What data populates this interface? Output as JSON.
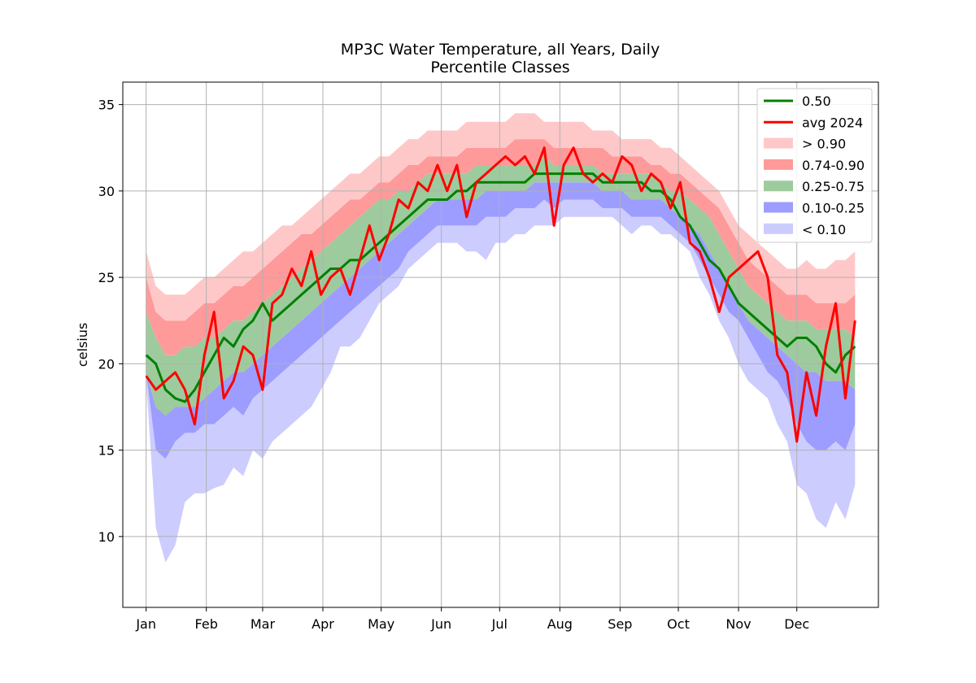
{
  "chart_data": {
    "type": "area",
    "title": "MP3C Water Temperature, all Years, Daily",
    "subtitle": "Percentile Classes",
    "ylabel": "celsius",
    "xlabel": "",
    "x_units": "day of year",
    "xlim": [
      -12,
      377
    ],
    "ylim": [
      5.9,
      36.3
    ],
    "yticks": [
      10,
      15,
      20,
      25,
      30,
      35
    ],
    "month_ticks": [
      {
        "label": "Jan",
        "day": 0
      },
      {
        "label": "Feb",
        "day": 31
      },
      {
        "label": "Mar",
        "day": 60
      },
      {
        "label": "Apr",
        "day": 91
      },
      {
        "label": "May",
        "day": 121
      },
      {
        "label": "Jun",
        "day": 152
      },
      {
        "label": "Jul",
        "day": 182
      },
      {
        "label": "Aug",
        "day": 213
      },
      {
        "label": "Sep",
        "day": 244
      },
      {
        "label": "Oct",
        "day": 274
      },
      {
        "label": "Nov",
        "day": 305
      },
      {
        "label": "Dec",
        "day": 335
      }
    ],
    "grid": true,
    "legend_position": "top-right",
    "colors": {
      "median": "#008000",
      "avg2024": "#ff0000",
      "gt90": "#ffc8c8",
      "p74_90": "#ff9a9a",
      "p25_75": "#9dcb9d",
      "p10_25": "#9d9dff",
      "lt10": "#ccccff"
    },
    "legend": [
      {
        "label": "0.50",
        "kind": "line",
        "color": "#008000"
      },
      {
        "label": "avg 2024",
        "kind": "line",
        "color": "#ff0000"
      },
      {
        "label": "> 0.90",
        "kind": "patch",
        "color": "#ffc8c8"
      },
      {
        "label": "0.74-0.90",
        "kind": "patch",
        "color": "#ff9a9a"
      },
      {
        "label": "0.25-0.75",
        "kind": "patch",
        "color": "#9dcb9d"
      },
      {
        "label": "0.10-0.25",
        "kind": "patch",
        "color": "#9d9dff"
      },
      {
        "label": "< 0.10",
        "kind": "patch",
        "color": "#ccccff"
      }
    ],
    "x": [
      0,
      5,
      10,
      15,
      20,
      25,
      30,
      35,
      40,
      45,
      50,
      55,
      60,
      65,
      70,
      75,
      80,
      85,
      90,
      95,
      100,
      105,
      110,
      115,
      120,
      125,
      130,
      135,
      140,
      145,
      150,
      155,
      160,
      165,
      170,
      175,
      180,
      185,
      190,
      195,
      200,
      205,
      210,
      215,
      220,
      225,
      230,
      235,
      240,
      245,
      250,
      255,
      260,
      265,
      270,
      275,
      280,
      285,
      290,
      295,
      300,
      305,
      310,
      315,
      320,
      325,
      330,
      335,
      340,
      345,
      350,
      355,
      360,
      365
    ],
    "series": [
      {
        "name": "< 0.10 (lower bound)",
        "values": [
          19.0,
          10.5,
          8.5,
          9.5,
          12.0,
          12.5,
          12.5,
          12.8,
          13.0,
          14.0,
          13.5,
          15.0,
          14.5,
          15.5,
          16.0,
          16.5,
          17.0,
          17.5,
          18.5,
          19.5,
          21.0,
          21.0,
          21.5,
          22.5,
          23.5,
          24.0,
          24.5,
          25.5,
          26.0,
          26.5,
          27.0,
          27.0,
          27.0,
          26.5,
          26.5,
          26.0,
          27.0,
          27.0,
          27.5,
          27.5,
          28.0,
          28.0,
          28.0,
          28.5,
          28.5,
          28.5,
          28.5,
          28.5,
          28.5,
          28.0,
          27.5,
          28.0,
          28.0,
          27.5,
          27.5,
          27.0,
          26.5,
          25.0,
          24.0,
          22.5,
          21.5,
          20.0,
          19.0,
          18.5,
          18.0,
          16.5,
          15.5,
          13.0,
          12.5,
          11.0,
          10.5,
          12.0,
          11.0,
          13.0
        ]
      },
      {
        "name": "0.10-0.25 (lower bound)",
        "values": [
          19.5,
          15.0,
          14.5,
          15.5,
          16.0,
          16.0,
          16.5,
          16.5,
          17.0,
          17.5,
          17.0,
          18.0,
          18.5,
          19.0,
          19.5,
          20.0,
          20.5,
          21.0,
          21.5,
          22.0,
          22.5,
          23.0,
          23.5,
          24.0,
          24.5,
          25.0,
          25.5,
          26.5,
          27.0,
          27.5,
          28.0,
          28.0,
          28.0,
          28.0,
          28.0,
          28.5,
          28.5,
          28.5,
          29.0,
          29.0,
          29.0,
          29.5,
          29.0,
          29.5,
          29.5,
          29.5,
          29.5,
          29.0,
          29.0,
          29.0,
          28.5,
          28.5,
          28.5,
          28.5,
          28.0,
          27.5,
          27.0,
          26.0,
          25.0,
          24.0,
          23.0,
          22.5,
          21.5,
          20.5,
          19.5,
          19.0,
          18.0,
          16.5,
          15.5,
          15.0,
          15.0,
          15.5,
          15.0,
          16.5
        ]
      },
      {
        "name": "0.25-0.75 (lower bound)",
        "values": [
          19.5,
          17.5,
          17.0,
          17.5,
          17.5,
          17.5,
          18.0,
          18.5,
          19.0,
          19.5,
          19.5,
          20.0,
          20.5,
          21.0,
          21.5,
          22.0,
          22.5,
          23.0,
          23.5,
          24.0,
          24.5,
          25.0,
          25.5,
          26.0,
          26.5,
          27.0,
          27.5,
          28.0,
          28.5,
          29.0,
          29.5,
          29.5,
          29.5,
          29.5,
          29.5,
          30.0,
          30.0,
          30.0,
          30.0,
          30.0,
          30.5,
          30.5,
          30.5,
          30.5,
          30.5,
          30.5,
          30.5,
          30.0,
          30.0,
          30.0,
          29.5,
          29.5,
          29.5,
          29.5,
          29.0,
          28.5,
          28.0,
          27.5,
          26.5,
          25.5,
          24.5,
          23.5,
          22.5,
          22.0,
          21.5,
          21.0,
          20.5,
          20.0,
          19.5,
          19.5,
          19.0,
          19.0,
          19.0,
          18.5
        ]
      },
      {
        "name": "0.74-0.90 (lower bound)",
        "values": [
          23.0,
          21.5,
          20.5,
          20.5,
          21.0,
          21.0,
          21.5,
          21.5,
          22.0,
          22.5,
          22.5,
          23.0,
          23.5,
          24.0,
          24.5,
          25.0,
          25.5,
          26.0,
          26.5,
          27.0,
          27.5,
          28.0,
          28.5,
          29.0,
          29.5,
          29.5,
          30.0,
          30.0,
          30.5,
          31.0,
          31.0,
          31.0,
          31.0,
          31.0,
          31.5,
          31.5,
          31.5,
          31.5,
          31.5,
          31.5,
          31.5,
          32.0,
          31.5,
          31.5,
          31.5,
          31.5,
          31.5,
          31.0,
          31.0,
          31.0,
          31.0,
          31.0,
          31.0,
          30.5,
          30.0,
          30.0,
          29.5,
          29.0,
          28.5,
          27.5,
          26.5,
          25.5,
          24.5,
          24.0,
          23.5,
          23.0,
          22.5,
          22.5,
          22.5,
          22.0,
          22.0,
          22.0,
          22.0,
          21.5
        ]
      },
      {
        "name": "> 0.90 (lower bound)",
        "values": [
          25.0,
          23.0,
          22.5,
          22.5,
          22.5,
          23.0,
          23.5,
          23.5,
          24.0,
          24.5,
          24.5,
          25.0,
          25.5,
          26.0,
          26.5,
          27.0,
          27.5,
          27.5,
          28.0,
          28.5,
          29.0,
          29.5,
          29.5,
          30.0,
          30.5,
          30.5,
          31.0,
          31.5,
          31.5,
          32.0,
          32.0,
          32.0,
          32.0,
          32.5,
          32.5,
          32.5,
          32.5,
          32.5,
          33.0,
          33.0,
          33.0,
          33.0,
          32.5,
          32.5,
          32.5,
          32.5,
          32.5,
          32.5,
          32.0,
          32.0,
          32.0,
          32.0,
          31.5,
          31.5,
          31.0,
          31.0,
          30.5,
          30.0,
          29.5,
          29.0,
          28.0,
          27.0,
          26.0,
          25.5,
          25.0,
          24.5,
          24.0,
          24.0,
          24.0,
          23.5,
          23.5,
          23.5,
          23.5,
          24.0
        ]
      },
      {
        "name": "> 0.90 (upper bound)",
        "values": [
          26.5,
          24.5,
          24.0,
          24.0,
          24.0,
          24.5,
          25.0,
          25.0,
          25.5,
          26.0,
          26.5,
          26.5,
          27.0,
          27.5,
          28.0,
          28.0,
          28.5,
          29.0,
          29.5,
          30.0,
          30.5,
          31.0,
          31.0,
          31.5,
          32.0,
          32.0,
          32.5,
          33.0,
          33.0,
          33.5,
          33.5,
          33.5,
          33.5,
          34.0,
          34.0,
          34.0,
          34.0,
          34.0,
          34.5,
          34.5,
          34.5,
          34.0,
          34.0,
          34.0,
          34.0,
          34.0,
          33.5,
          33.5,
          33.5,
          33.0,
          33.0,
          33.0,
          33.0,
          32.5,
          32.5,
          32.0,
          31.5,
          31.0,
          30.5,
          30.0,
          29.0,
          28.0,
          27.5,
          27.0,
          26.5,
          26.0,
          25.5,
          25.5,
          26.0,
          25.5,
          25.5,
          26.0,
          26.0,
          26.5
        ]
      },
      {
        "name": "0.50",
        "values": [
          20.5,
          20.0,
          18.5,
          18.0,
          17.8,
          18.5,
          19.5,
          20.5,
          21.5,
          21.0,
          22.0,
          22.5,
          23.5,
          22.5,
          23.0,
          23.5,
          24.0,
          24.5,
          25.0,
          25.5,
          25.5,
          26.0,
          26.0,
          26.5,
          27.0,
          27.5,
          28.0,
          28.5,
          29.0,
          29.5,
          29.5,
          29.5,
          30.0,
          30.0,
          30.5,
          30.5,
          30.5,
          30.5,
          30.5,
          30.5,
          31.0,
          31.0,
          31.0,
          31.0,
          31.0,
          31.0,
          31.0,
          30.5,
          30.5,
          30.5,
          30.5,
          30.5,
          30.0,
          30.0,
          29.5,
          28.5,
          28.0,
          27.0,
          26.0,
          25.5,
          24.5,
          23.5,
          23.0,
          22.5,
          22.0,
          21.5,
          21.0,
          21.5,
          21.5,
          21.0,
          20.0,
          19.5,
          20.5,
          21.0
        ]
      },
      {
        "name": "avg 2024",
        "values": [
          19.3,
          18.5,
          19.0,
          19.5,
          18.5,
          16.5,
          20.5,
          23.0,
          18.0,
          19.0,
          21.0,
          20.5,
          18.5,
          23.5,
          24.0,
          25.5,
          24.5,
          26.5,
          24.0,
          25.0,
          25.5,
          24.0,
          26.0,
          28.0,
          26.0,
          27.5,
          29.5,
          29.0,
          30.5,
          30.0,
          31.5,
          30.0,
          31.5,
          28.5,
          30.5,
          31.0,
          31.5,
          32.0,
          31.5,
          32.0,
          31.0,
          32.5,
          28.0,
          31.5,
          32.5,
          31.0,
          30.5,
          31.0,
          30.5,
          32.0,
          31.5,
          30.0,
          31.0,
          30.5,
          29.0,
          30.5,
          27.0,
          26.5,
          25.0,
          23.0,
          25.0,
          25.5,
          26.0,
          26.5,
          25.0,
          20.5,
          19.5,
          15.5,
          19.5,
          17.0,
          21.0,
          23.5,
          18.0,
          22.5
        ]
      }
    ]
  }
}
